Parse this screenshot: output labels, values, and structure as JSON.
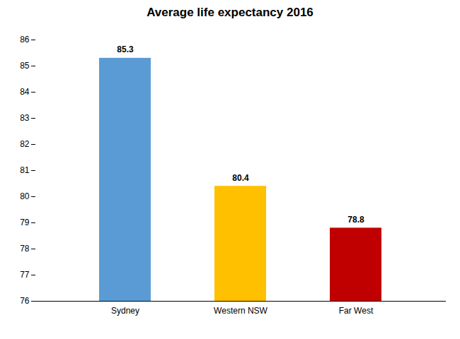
{
  "chart_data": {
    "type": "bar",
    "title": "Average life expectancy 2016",
    "categories": [
      "Sydney",
      "Western NSW",
      "Far West"
    ],
    "values": [
      85.3,
      80.4,
      78.8
    ],
    "colors": [
      "#5b9bd5",
      "#ffc000",
      "#c00000"
    ],
    "ylim": [
      76,
      86
    ],
    "yticks": [
      76,
      77,
      78,
      79,
      80,
      81,
      82,
      83,
      84,
      85,
      86
    ],
    "grid": false,
    "data_labels": true
  }
}
